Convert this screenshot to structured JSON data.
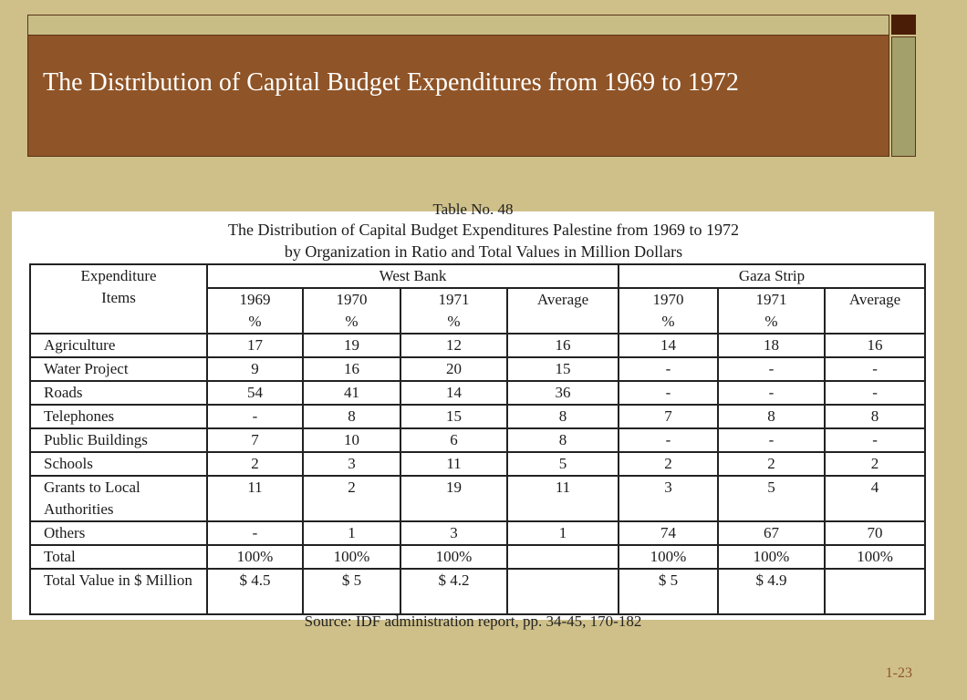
{
  "slide": {
    "title": "The Distribution of Capital Budget Expenditures from 1969 to 1972",
    "page_number": "1-23"
  },
  "document": {
    "top_cut_text": "Table No. 48",
    "caption_line1": "The Distribution of Capital Budget Expenditures Palestine from 1969 to 1972",
    "caption_line2": "by Organization in Ratio and Total Values in Million Dollars",
    "bottom_cut_text": "Source: IDF administration report, pp. 34-45, 170-182",
    "table": {
      "header": {
        "expenditure_line1": "Expenditure",
        "expenditure_line2": "Items",
        "west_bank": "West Bank",
        "gaza_strip": "Gaza Strip"
      },
      "subheaders": [
        {
          "line1": "1969",
          "line2": "%"
        },
        {
          "line1": "1970",
          "line2": "%"
        },
        {
          "line1": "1971",
          "line2": "%"
        },
        {
          "line1": "Average",
          "line2": ""
        },
        {
          "line1": "1970",
          "line2": "%"
        },
        {
          "line1": "1971",
          "line2": "%"
        },
        {
          "line1": "Average",
          "line2": ""
        }
      ],
      "rows": [
        {
          "item": "Agriculture",
          "values": [
            "17",
            "19",
            "12",
            "16",
            "14",
            "18",
            "16"
          ]
        },
        {
          "item": "Water Project",
          "values": [
            "9",
            "16",
            "20",
            "15",
            "-",
            "-",
            "-"
          ]
        },
        {
          "item": "Roads",
          "values": [
            "54",
            "41",
            "14",
            "36",
            "-",
            "-",
            "-"
          ]
        },
        {
          "item": "Telephones",
          "values": [
            "-",
            "8",
            "15",
            "8",
            "7",
            "8",
            "8"
          ]
        },
        {
          "item": "Public Buildings",
          "values": [
            "7",
            "10",
            "6",
            "8",
            "-",
            "-",
            "-"
          ]
        },
        {
          "item": "Schools",
          "values": [
            "2",
            "3",
            "11",
            "5",
            "2",
            "2",
            "2"
          ]
        },
        {
          "item": "Grants to Local Authorities",
          "values": [
            "11",
            "2",
            "19",
            "11",
            "3",
            "5",
            "4"
          ]
        },
        {
          "item": "Others",
          "values": [
            "-",
            "1",
            "3",
            "1",
            "74",
            "67",
            "70"
          ]
        },
        {
          "item": "Total",
          "values": [
            "100%",
            "100%",
            "100%",
            "",
            "100%",
            "100%",
            "100%"
          ]
        },
        {
          "item": "Total Value in  $ Million",
          "values": [
            "$ 4.5",
            "$ 5",
            "$ 4.2",
            "",
            "$ 5",
            "$ 4.9",
            ""
          ]
        }
      ]
    }
  },
  "colors": {
    "background": "#cfc08a",
    "title_box": "#8f5427",
    "side_bar": "#a3a06c",
    "corner": "#4a1e06"
  }
}
